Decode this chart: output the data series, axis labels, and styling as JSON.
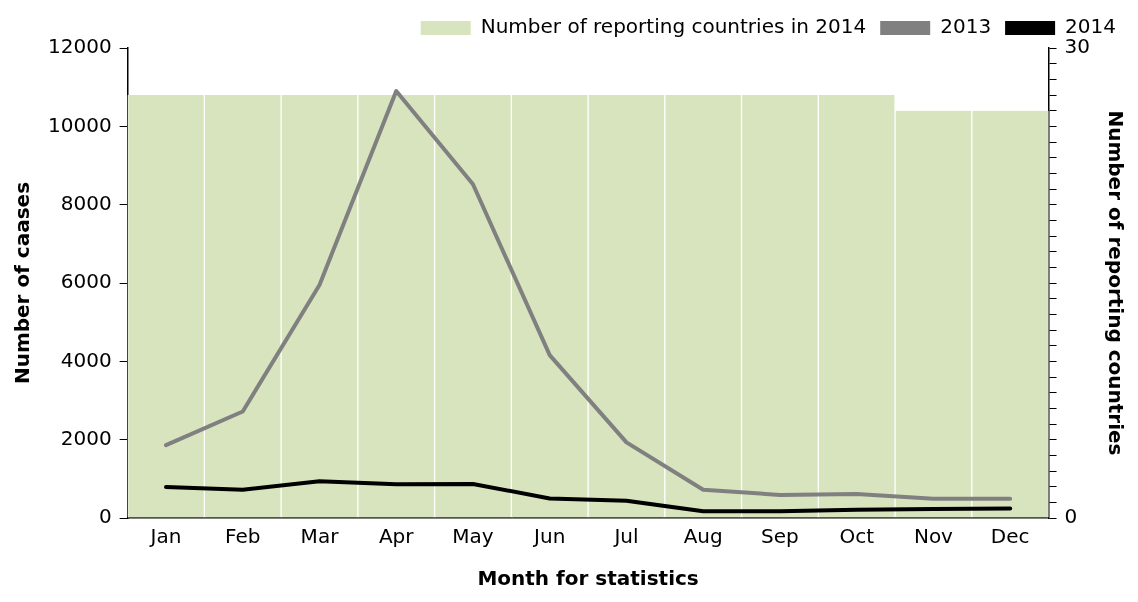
{
  "chart_data": {
    "type": "line",
    "xlabel": "Month for statistics",
    "ylabel": "Number of caases",
    "y2label": "Number of reporting countries",
    "categories": [
      "Jan",
      "Feb",
      "Mar",
      "Apr",
      "May",
      "Jun",
      "Jul",
      "Aug",
      "Sep",
      "Oct",
      "Nov",
      "Dec"
    ],
    "series": [
      {
        "name": "Number of reporting countries in 2014",
        "type": "bar",
        "axis": "y2",
        "color": "#d7e4bd",
        "values": [
          27,
          27,
          27,
          27,
          27,
          27,
          27,
          27,
          27,
          27,
          26,
          26
        ]
      },
      {
        "name": "2013",
        "color": "#808080",
        "values": [
          1860,
          2720,
          5950,
          10900,
          8520,
          4160,
          1930,
          720,
          590,
          610,
          490,
          490
        ]
      },
      {
        "name": "2014",
        "color": "#000000",
        "values": [
          790,
          720,
          940,
          860,
          870,
          500,
          440,
          170,
          170,
          210,
          230,
          240
        ]
      }
    ],
    "ylim": [
      0,
      12000
    ],
    "yticks": [
      0,
      2000,
      4000,
      6000,
      8000,
      10000,
      12000
    ],
    "y2lim": [
      0,
      30
    ],
    "y2ticks": [
      0,
      {
        "value": 1,
        "label": null
      },
      {
        "value": 2,
        "label": null
      },
      {
        "value": 3,
        "label": null
      },
      {
        "value": 4,
        "label": null
      },
      {
        "value": 5,
        "label": null
      },
      {
        "value": 6,
        "label": null
      },
      {
        "value": 7,
        "label": null
      },
      {
        "value": 8,
        "label": null
      },
      {
        "value": 9,
        "label": null
      },
      {
        "value": 10,
        "label": null
      },
      {
        "value": 11,
        "label": null
      },
      {
        "value": 12,
        "label": null
      },
      {
        "value": 13,
        "label": null
      },
      {
        "value": 14,
        "label": null
      },
      {
        "value": 15,
        "label": null
      },
      {
        "value": 16,
        "label": null
      },
      {
        "value": 17,
        "label": null
      },
      {
        "value": 18,
        "label": null
      },
      {
        "value": 19,
        "label": null
      },
      {
        "value": 20,
        "label": null
      },
      {
        "value": 21,
        "label": null
      },
      {
        "value": 22,
        "label": null
      },
      {
        "value": 23,
        "label": null
      },
      {
        "value": 24,
        "label": null
      },
      {
        "value": 25,
        "label": null
      },
      {
        "value": 26,
        "label": null
      },
      {
        "value": 27,
        "label": null
      },
      {
        "value": 28,
        "label": null
      },
      {
        "value": 29,
        "label": null
      },
      30
    ],
    "legend": "top",
    "grid": false,
    "marker": "none",
    "line_style": "solid"
  }
}
